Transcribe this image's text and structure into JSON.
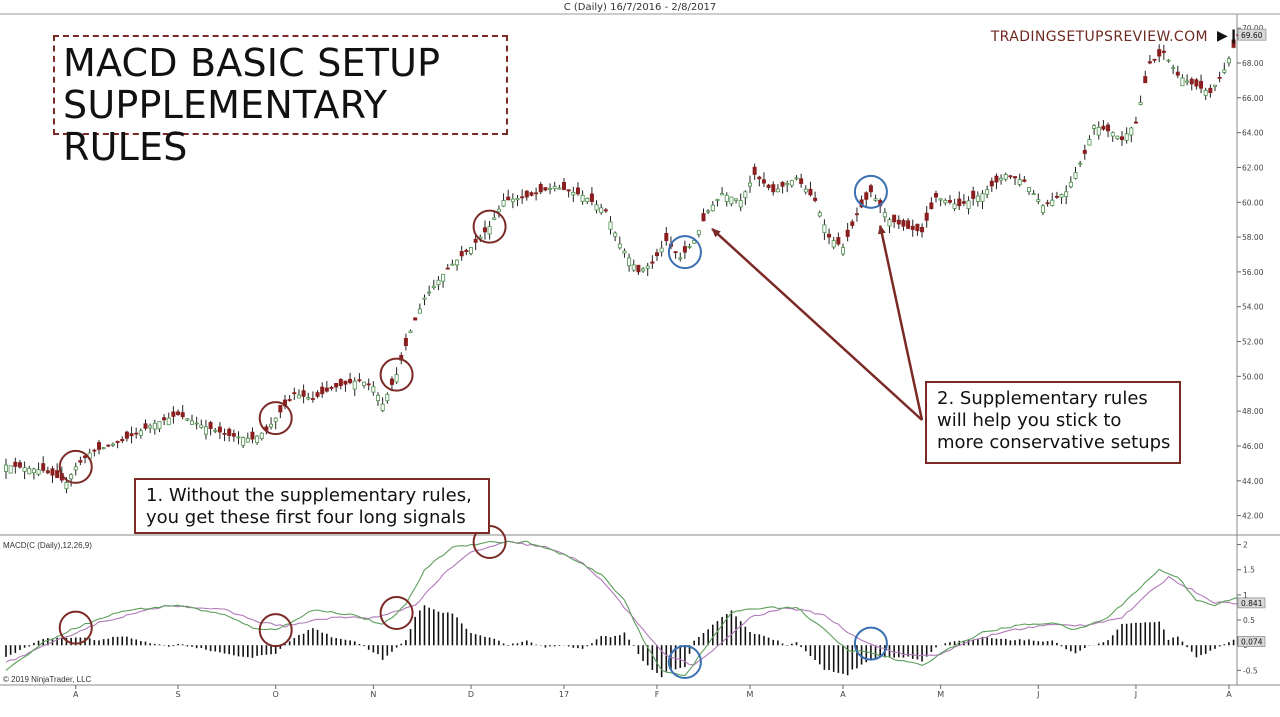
{
  "header": {
    "title": "C (Daily)  16/7/2016 - 2/8/2017"
  },
  "brand": "TRADINGSETUPSREVIEW.COM",
  "title_box": {
    "line1": "MACD BASIC SETUP",
    "line2": "SUPPLEMENTARY RULES"
  },
  "notes": {
    "note1": {
      "line1": "1. Without the supplementary rules,",
      "line2": "you get these first four long signals"
    },
    "note2": {
      "line1": "2. Supplementary rules",
      "line2": "will help you stick to",
      "line3": "more conservative setups"
    }
  },
  "copyright": "© 2019 NinjaTrader, LLC",
  "colors": {
    "up": "#ffffff",
    "down": "#8b1f1f",
    "wick": "#222222",
    "green_border": "#4e8f4e",
    "red_circle": "#7b2a26",
    "blue_circle": "#3a6fb0",
    "macd_line": "#5c9e5c",
    "signal_line": "#b07ab8",
    "histogram": "#111111"
  },
  "chart_data": [
    {
      "type": "candlestick",
      "title": "C (Daily)",
      "ylim": [
        41,
        70.7
      ],
      "y_ticks": [
        "42.00",
        "44.00",
        "46.00",
        "48.00",
        "50.00",
        "52.00",
        "54.00",
        "56.00",
        "58.00",
        "60.00",
        "62.00",
        "64.00",
        "66.00",
        "68.00",
        "70.00"
      ],
      "last_price_label": "69.60",
      "x_ticks": [
        "A",
        "S",
        "O",
        "N",
        "D",
        "17",
        "F",
        "M",
        "A",
        "M",
        "J",
        "J",
        "A"
      ],
      "x_tick_index": [
        15,
        37,
        58,
        79,
        100,
        120,
        140,
        160,
        180,
        201,
        222,
        243,
        263
      ],
      "n_candles": 265,
      "anchors": [
        [
          0,
          44.9
        ],
        [
          8,
          44.6
        ],
        [
          13,
          43.9
        ],
        [
          15,
          44.8
        ],
        [
          18,
          45.6
        ],
        [
          25,
          46.3
        ],
        [
          32,
          47.3
        ],
        [
          37,
          47.8
        ],
        [
          42,
          47.2
        ],
        [
          48,
          46.6
        ],
        [
          53,
          46.4
        ],
        [
          56,
          46.9
        ],
        [
          58,
          47.6
        ],
        [
          62,
          49.0
        ],
        [
          66,
          48.7
        ],
        [
          70,
          49.3
        ],
        [
          76,
          49.8
        ],
        [
          79,
          49.4
        ],
        [
          81,
          48.4
        ],
        [
          84,
          50.1
        ],
        [
          87,
          52.6
        ],
        [
          90,
          54.5
        ],
        [
          95,
          56.2
        ],
        [
          100,
          57.4
        ],
        [
          104,
          58.6
        ],
        [
          107,
          60.1
        ],
        [
          112,
          60.3
        ],
        [
          118,
          60.9
        ],
        [
          124,
          60.4
        ],
        [
          129,
          59.5
        ],
        [
          132,
          57.6
        ],
        [
          136,
          56.0
        ],
        [
          139,
          56.5
        ],
        [
          142,
          57.8
        ],
        [
          145,
          56.8
        ],
        [
          148,
          57.8
        ],
        [
          151,
          59.5
        ],
        [
          154,
          60.5
        ],
        [
          158,
          60.1
        ],
        [
          161,
          61.6
        ],
        [
          165,
          60.6
        ],
        [
          170,
          61.4
        ],
        [
          174,
          60.1
        ],
        [
          177,
          58.0
        ],
        [
          180,
          57.4
        ],
        [
          183,
          59.3
        ],
        [
          186,
          60.6
        ],
        [
          190,
          59.0
        ],
        [
          194,
          58.5
        ],
        [
          197,
          58.3
        ],
        [
          200,
          60.3
        ],
        [
          205,
          59.8
        ],
        [
          210,
          60.5
        ],
        [
          215,
          61.6
        ],
        [
          219,
          61.2
        ],
        [
          223,
          59.8
        ],
        [
          228,
          60.6
        ],
        [
          232,
          62.8
        ],
        [
          234,
          64.4
        ],
        [
          238,
          64.0
        ],
        [
          240,
          63.6
        ],
        [
          243,
          64.6
        ],
        [
          246,
          68.0
        ],
        [
          249,
          68.6
        ],
        [
          252,
          67.3
        ],
        [
          255,
          66.8
        ],
        [
          259,
          66.3
        ],
        [
          262,
          67.6
        ],
        [
          264,
          68.9
        ],
        [
          265,
          69.6
        ]
      ],
      "red_circles_idx": [
        15,
        58,
        84,
        104
      ],
      "blue_circles_idx": [
        146,
        186
      ],
      "arrow_targets_idx": [
        151,
        188
      ]
    },
    {
      "type": "line+histogram",
      "title": "MACD(C (Daily),12,26,9)",
      "ylim": [
        -0.75,
        2.15
      ],
      "y_ticks": [
        "-0.5",
        "0",
        "0.5",
        "1",
        "1.5",
        "2"
      ],
      "value_labels": [
        "0.841",
        "0.074"
      ],
      "series": [
        {
          "name": "MACD",
          "anchors": [
            [
              0,
              -0.5
            ],
            [
              8,
              0.05
            ],
            [
              15,
              0.35
            ],
            [
              25,
              0.68
            ],
            [
              37,
              0.8
            ],
            [
              47,
              0.6
            ],
            [
              53,
              0.35
            ],
            [
              58,
              0.3
            ],
            [
              66,
              0.7
            ],
            [
              75,
              0.6
            ],
            [
              81,
              0.4
            ],
            [
              86,
              0.8
            ],
            [
              90,
              1.5
            ],
            [
              96,
              1.95
            ],
            [
              104,
              2.05
            ],
            [
              112,
              2.05
            ],
            [
              120,
              1.8
            ],
            [
              128,
              1.4
            ],
            [
              133,
              0.9
            ],
            [
              137,
              0.1
            ],
            [
              141,
              -0.5
            ],
            [
              146,
              -0.6
            ],
            [
              150,
              -0.1
            ],
            [
              156,
              0.65
            ],
            [
              163,
              0.75
            ],
            [
              170,
              0.75
            ],
            [
              176,
              0.3
            ],
            [
              181,
              -0.1
            ],
            [
              186,
              -0.15
            ],
            [
              192,
              -0.3
            ],
            [
              197,
              -0.4
            ],
            [
              203,
              -0.05
            ],
            [
              210,
              0.25
            ],
            [
              218,
              0.4
            ],
            [
              225,
              0.45
            ],
            [
              230,
              0.3
            ],
            [
              237,
              0.55
            ],
            [
              241,
              0.9
            ],
            [
              248,
              1.5
            ],
            [
              252,
              1.35
            ],
            [
              256,
              0.9
            ],
            [
              260,
              0.8
            ],
            [
              265,
              0.95
            ]
          ]
        },
        {
          "name": "Signal",
          "anchors": [
            [
              0,
              -0.35
            ],
            [
              10,
              0.05
            ],
            [
              20,
              0.45
            ],
            [
              35,
              0.8
            ],
            [
              47,
              0.7
            ],
            [
              55,
              0.45
            ],
            [
              60,
              0.38
            ],
            [
              70,
              0.55
            ],
            [
              80,
              0.55
            ],
            [
              88,
              0.8
            ],
            [
              94,
              1.4
            ],
            [
              100,
              1.85
            ],
            [
              108,
              2.05
            ],
            [
              116,
              1.95
            ],
            [
              124,
              1.65
            ],
            [
              130,
              1.1
            ],
            [
              136,
              0.4
            ],
            [
              142,
              -0.2
            ],
            [
              148,
              -0.4
            ],
            [
              154,
              0.05
            ],
            [
              160,
              0.55
            ],
            [
              168,
              0.75
            ],
            [
              176,
              0.6
            ],
            [
              182,
              0.2
            ],
            [
              188,
              -0.05
            ],
            [
              194,
              -0.2
            ],
            [
              200,
              -0.2
            ],
            [
              208,
              0.1
            ],
            [
              216,
              0.3
            ],
            [
              224,
              0.4
            ],
            [
              232,
              0.4
            ],
            [
              240,
              0.55
            ],
            [
              246,
              1.05
            ],
            [
              250,
              1.35
            ],
            [
              255,
              1.1
            ],
            [
              260,
              0.85
            ],
            [
              265,
              0.84
            ]
          ]
        }
      ],
      "histogram_note": "MACD minus signal"
    }
  ]
}
